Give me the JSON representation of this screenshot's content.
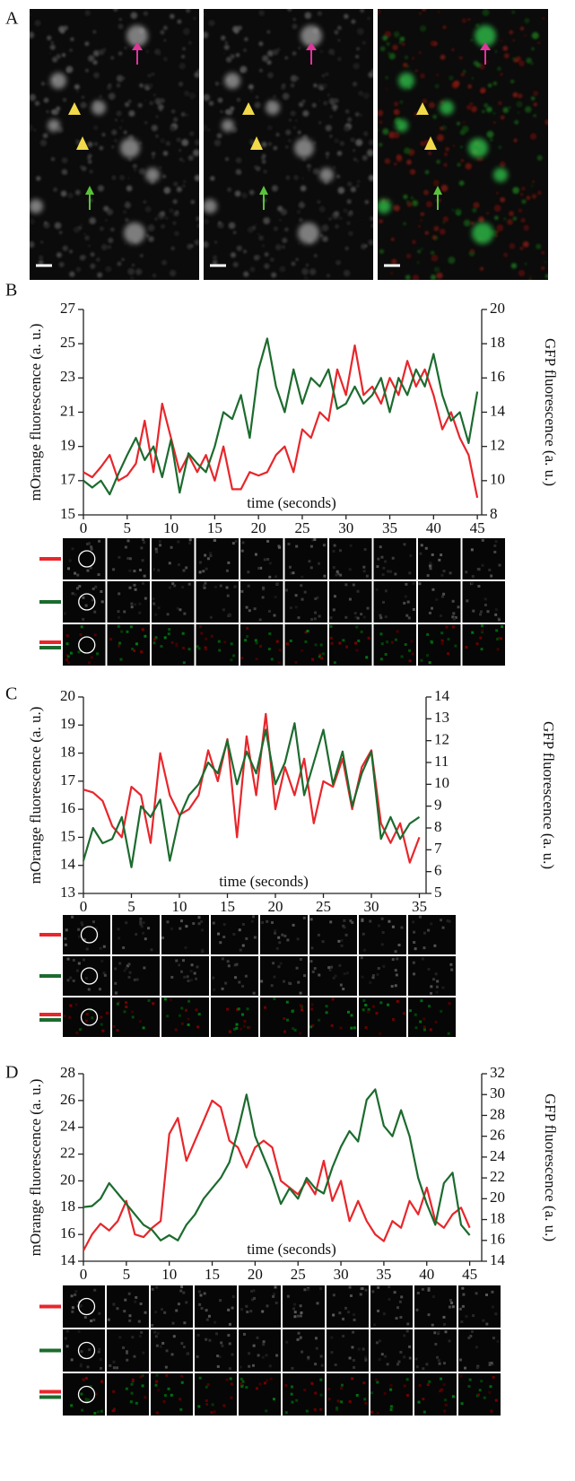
{
  "panel_a": {
    "label": "A"
  },
  "chart_data": [
    {
      "type": "line",
      "label": "B",
      "xlabel": "time (seconds)",
      "ylabel": "mOrange fluorescence (a. u.)",
      "y2label": "GFP fluorescence (a. u.)",
      "x": [
        0,
        1,
        2,
        3,
        4,
        5,
        6,
        7,
        8,
        9,
        10,
        11,
        12,
        13,
        14,
        15,
        16,
        17,
        18,
        19,
        20,
        21,
        22,
        23,
        24,
        25,
        26,
        27,
        28,
        29,
        30,
        31,
        32,
        33,
        34,
        35,
        36,
        37,
        38,
        39,
        40,
        41,
        42,
        43,
        44,
        45
      ],
      "xlim": [
        0,
        45.5
      ],
      "xticks": [
        0,
        5,
        10,
        15,
        20,
        25,
        30,
        35,
        40,
        45
      ],
      "ylim": [
        15,
        27
      ],
      "yticks": [
        15,
        17,
        19,
        21,
        23,
        25,
        27
      ],
      "y2lim": [
        8,
        20
      ],
      "y2ticks": [
        8,
        10,
        12,
        14,
        16,
        18,
        20
      ],
      "series": [
        {
          "color": "#e8262b",
          "values": [
            17.5,
            17.2,
            17.8,
            18.5,
            17.0,
            17.3,
            18.0,
            20.5,
            17.5,
            21.5,
            19.5,
            17.5,
            18.5,
            17.5,
            18.5,
            17.0,
            19.0,
            16.5,
            16.5,
            17.5,
            17.3,
            17.5,
            18.5,
            19.0,
            17.5,
            20.0,
            19.5,
            21.0,
            20.5,
            23.5,
            22.0,
            24.9,
            22.0,
            22.5,
            21.5,
            23.0,
            22.0,
            24.0,
            22.5,
            23.5,
            22.0,
            20.0,
            21.0,
            19.5,
            18.5,
            16.0
          ]
        },
        {
          "color": "#1c6b2e",
          "axis": "y2",
          "values": [
            10.0,
            9.6,
            10.0,
            9.2,
            10.4,
            11.5,
            12.5,
            11.2,
            12.0,
            10.2,
            12.4,
            9.3,
            11.6,
            11.0,
            10.5,
            12.0,
            14.0,
            13.6,
            15.0,
            12.5,
            16.5,
            18.3,
            15.5,
            14.0,
            16.5,
            14.5,
            16.0,
            15.5,
            16.5,
            14.2,
            14.5,
            15.5,
            14.5,
            15.0,
            16.0,
            14.0,
            16.0,
            15.0,
            16.5,
            15.5,
            17.4,
            15.0,
            13.5,
            14.0,
            12.2,
            15.2
          ]
        }
      ]
    },
    {
      "type": "line",
      "label": "C",
      "xlabel": "time (seconds)",
      "ylabel": "mOrange fluorescence (a. u.)",
      "y2label": "GFP fluorescence (a. u.)",
      "x": [
        0,
        1,
        2,
        3,
        4,
        5,
        6,
        7,
        8,
        9,
        10,
        11,
        12,
        13,
        14,
        15,
        16,
        17,
        18,
        19,
        20,
        21,
        22,
        23,
        24,
        25,
        26,
        27,
        28,
        29,
        30,
        31,
        32,
        33,
        34,
        35
      ],
      "xlim": [
        0,
        35.7
      ],
      "xticks": [
        0,
        5,
        10,
        15,
        20,
        25,
        30,
        35
      ],
      "ylim": [
        13,
        20
      ],
      "yticks": [
        13,
        14,
        15,
        16,
        17,
        18,
        19,
        20
      ],
      "y2lim": [
        5,
        14
      ],
      "y2ticks": [
        5,
        6,
        7,
        8,
        9,
        10,
        11,
        12,
        13,
        14
      ],
      "series": [
        {
          "color": "#e8262b",
          "values": [
            16.7,
            16.6,
            16.3,
            15.4,
            15.0,
            16.8,
            16.5,
            14.8,
            18.0,
            16.5,
            15.8,
            16.0,
            16.5,
            18.1,
            17.0,
            18.5,
            15.0,
            18.6,
            16.5,
            19.4,
            16.0,
            17.5,
            16.5,
            17.8,
            15.5,
            17.0,
            16.8,
            17.8,
            16.0,
            17.5,
            18.1,
            15.5,
            14.8,
            15.5,
            14.1,
            15.0
          ]
        },
        {
          "color": "#1c6b2e",
          "axis": "y2",
          "values": [
            6.5,
            8.0,
            7.3,
            7.5,
            8.5,
            6.2,
            9.0,
            8.5,
            9.3,
            6.5,
            8.5,
            9.5,
            10.0,
            11.0,
            10.5,
            12.0,
            10.0,
            11.5,
            10.5,
            12.5,
            10.0,
            11.0,
            12.8,
            9.5,
            11.0,
            12.5,
            10.0,
            11.5,
            9.0,
            10.5,
            11.5,
            7.5,
            8.5,
            7.5,
            8.2,
            8.5
          ]
        }
      ]
    },
    {
      "type": "line",
      "label": "D",
      "xlabel": "time (seconds)",
      "ylabel": "mOrange fluorescence (a. u.)",
      "y2label": "GFP fluorescence (a. u.)",
      "x": [
        0,
        1,
        2,
        3,
        4,
        5,
        6,
        7,
        8,
        9,
        10,
        11,
        12,
        13,
        14,
        15,
        16,
        17,
        18,
        19,
        20,
        21,
        22,
        23,
        24,
        25,
        26,
        27,
        28,
        29,
        30,
        31,
        32,
        33,
        34,
        35,
        36,
        37,
        38,
        39,
        40,
        41,
        42,
        43,
        44,
        45
      ],
      "xlim": [
        0,
        46.4
      ],
      "xticks": [
        0,
        5,
        10,
        15,
        20,
        25,
        30,
        35,
        40,
        45
      ],
      "ylim": [
        14,
        28
      ],
      "yticks": [
        14,
        16,
        18,
        20,
        22,
        24,
        26,
        28
      ],
      "y2lim": [
        14,
        32
      ],
      "y2ticks": [
        14,
        16,
        18,
        20,
        22,
        24,
        26,
        28,
        30,
        32
      ],
      "series": [
        {
          "color": "#e8262b",
          "values": [
            14.8,
            16.0,
            16.8,
            16.3,
            17.0,
            18.5,
            16.0,
            15.8,
            16.5,
            17.0,
            23.5,
            24.7,
            21.5,
            23.0,
            24.5,
            26.0,
            25.5,
            23.0,
            22.5,
            21.0,
            22.5,
            23.0,
            22.5,
            20.0,
            19.5,
            19.0,
            20.0,
            19.0,
            21.5,
            18.5,
            20.0,
            17.0,
            18.5,
            17.0,
            16.0,
            15.5,
            17.0,
            16.5,
            18.5,
            17.5,
            19.5,
            17.0,
            16.5,
            17.5,
            18.0,
            16.5
          ]
        },
        {
          "color": "#1c6b2e",
          "axis": "y2",
          "values": [
            19.2,
            19.3,
            20.0,
            21.5,
            20.5,
            19.5,
            18.5,
            17.5,
            17.0,
            16.0,
            16.5,
            16.0,
            17.5,
            18.5,
            20.0,
            21.0,
            22.0,
            23.5,
            26.5,
            30.0,
            26.0,
            24.0,
            22.0,
            19.5,
            21.0,
            20.0,
            22.0,
            21.0,
            20.5,
            23.0,
            25.0,
            26.5,
            25.5,
            29.5,
            30.5,
            27.0,
            26.0,
            28.5,
            26.0,
            22.0,
            19.5,
            17.5,
            21.5,
            22.5,
            17.5,
            16.5
          ]
        }
      ]
    }
  ]
}
